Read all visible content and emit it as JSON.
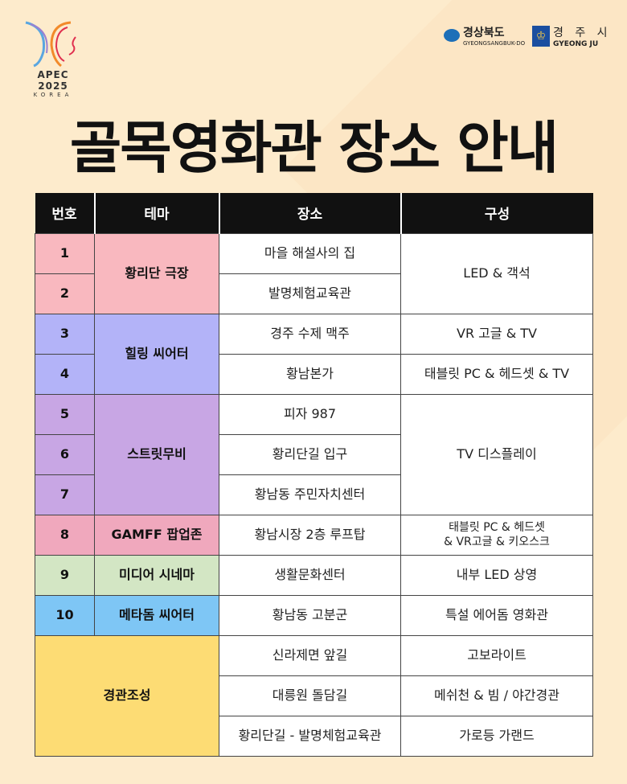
{
  "header": {
    "apec": "APEC 2025",
    "korea": "KOREA",
    "gb_kr": "경상북도",
    "gb_en": "GYEONGSANGBUK-DO",
    "gj_kr": "경 주 시",
    "gj_en": "GYEONG JU"
  },
  "title": "골목영화관 장소 안내",
  "columns": [
    "번호",
    "테마",
    "장소",
    "구성"
  ],
  "rows": [
    {
      "no": "1",
      "theme": "황리단 극장",
      "place": "마을 해설사의 집",
      "config": "LED & 객석"
    },
    {
      "no": "2",
      "place": "발명체험교육관"
    },
    {
      "no": "3",
      "theme": "힐링 씨어터",
      "place": "경주 수제 맥주",
      "config": "VR 고글 & TV"
    },
    {
      "no": "4",
      "place": "황남본가",
      "config": "태블릿 PC & 헤드셋 & TV"
    },
    {
      "no": "5",
      "theme": "스트릿무비",
      "place": "피자 987",
      "config": "TV 디스플레이"
    },
    {
      "no": "6",
      "place": "황리단길 입구"
    },
    {
      "no": "7",
      "place": "황남동 주민자치센터"
    },
    {
      "no": "8",
      "theme": "GAMFF 팝업존",
      "place": "황남시장 2층 루프탑",
      "config": "태블릿 PC & 헤드셋",
      "config2": "& VR고글 & 키오스크"
    },
    {
      "no": "9",
      "theme": "미디어 시네마",
      "place": "생활문화센터",
      "config": "내부 LED 상영"
    },
    {
      "no": "10",
      "theme": "메타돔 씨어터",
      "place": "황남동 고분군",
      "config": "특설 에어돔 영화관"
    },
    {
      "theme": "경관조성",
      "place": "신라제면 앞길",
      "config": "고보라이트"
    },
    {
      "place": "대릉원 돌담길",
      "config": "메쉬천 & 빔 / 야간경관"
    },
    {
      "place": "황리단길 - 발명체험교육관",
      "config": "가로등 가랜드"
    }
  ],
  "colors": {
    "theme1": "#f9b8bf",
    "theme2": "#b3b3f8",
    "theme3": "#c8a6e4",
    "theme4": "#f0a8bd",
    "theme5": "#d3e6c4",
    "theme6": "#7ec6f5",
    "theme7": "#fddc74",
    "background": "#fdebcc"
  }
}
